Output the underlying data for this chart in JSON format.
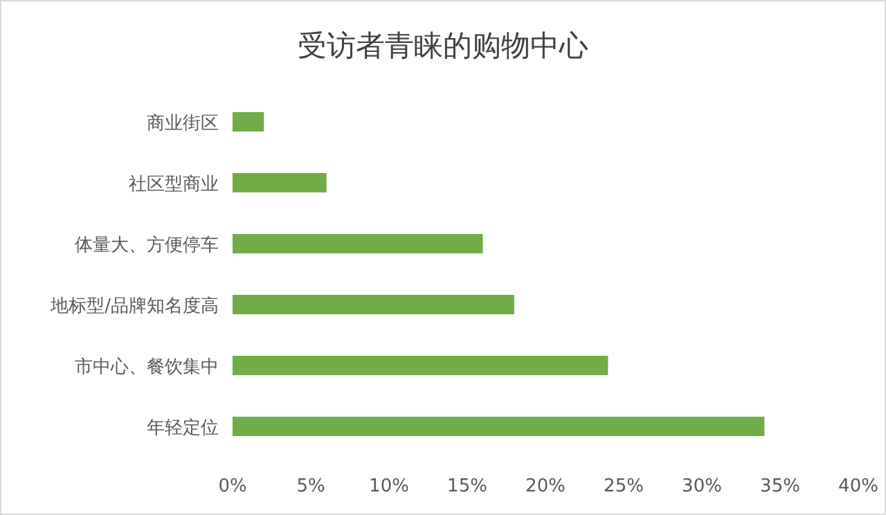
{
  "chart_data": {
    "type": "bar",
    "orientation": "horizontal",
    "title": "受访者青睐的购物中心",
    "categories": [
      "商业街区",
      "社区型商业",
      "体量大、方便停车",
      "地标型/品牌知名度高",
      "市中心、餐饮集中",
      "年轻定位"
    ],
    "values": [
      2,
      6,
      16,
      18,
      24,
      34
    ],
    "color": "#70ad47",
    "xlim": [
      0,
      40
    ],
    "xticks": [
      {
        "value": 0,
        "label": "0%"
      },
      {
        "value": 5,
        "label": "5%"
      },
      {
        "value": 10,
        "label": "10%"
      },
      {
        "value": 15,
        "label": "15%"
      },
      {
        "value": 20,
        "label": "20%"
      },
      {
        "value": 25,
        "label": "25%"
      },
      {
        "value": 30,
        "label": "30%"
      },
      {
        "value": 35,
        "label": "35%"
      },
      {
        "value": 40,
        "label": "40%"
      }
    ]
  }
}
